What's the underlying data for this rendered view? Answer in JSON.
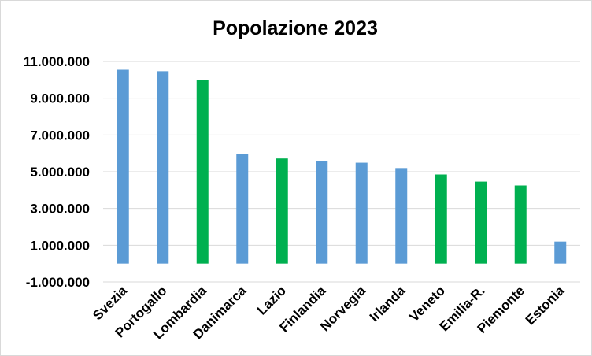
{
  "chart_data": {
    "type": "bar",
    "title": "Popolazione 2023",
    "categories": [
      "Svezia",
      "Portogallo",
      "Lombardia",
      "Danimarca",
      "Lazio",
      "Finlandia",
      "Norvegia",
      "Irlanda",
      "Veneto",
      "Emilia-R.",
      "Piemonte",
      "Estonia"
    ],
    "values": [
      10550000,
      10470000,
      10000000,
      5950000,
      5720000,
      5560000,
      5490000,
      5200000,
      4850000,
      4460000,
      4250000,
      1200000
    ],
    "group": [
      "country",
      "country",
      "region",
      "country",
      "region",
      "country",
      "country",
      "country",
      "region",
      "region",
      "region",
      "country"
    ],
    "colors": {
      "country": "#5b9bd5",
      "region": "#00b050"
    },
    "ylim": [
      -1000000,
      11000000
    ],
    "yticks": [
      -1000000,
      1000000,
      3000000,
      5000000,
      7000000,
      9000000,
      11000000
    ],
    "ytick_labels": [
      "-1.000.000",
      "1.000.000",
      "3.000.000",
      "5.000.000",
      "7.000.000",
      "9.000.000",
      "11.000.000"
    ],
    "grid": true,
    "legend": "none"
  }
}
